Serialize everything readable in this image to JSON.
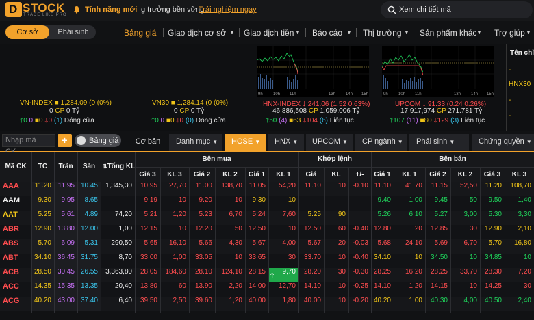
{
  "header": {
    "logo": "STOCK",
    "logo_sub": "TRADE LIKE PRO",
    "feature_label": "Tính năng mới",
    "marquee_text": "g trưởng bền vững.",
    "marquee_link": "Trải nghiệm ngay",
    "search_placeholder": "Xem chi tiết mã"
  },
  "nav": {
    "seg_on": "Cơ sở",
    "seg_off": "Phái sinh",
    "menu": [
      "Bảng giá",
      "Giao dịch cơ sở",
      "Giao dịch tiền",
      "Báo cáo",
      "Thị trường",
      "Sản phẩm khác",
      "Trợ giúp"
    ]
  },
  "indices": {
    "vnindex": {
      "name": "VN-INDEX",
      "value": "1,284.09 (0 (0%)",
      "vol": "0",
      "cp": "CP",
      "val": "0 Tỷ",
      "up": "0",
      "ceil": "0",
      "ref": "0",
      "down": "0",
      "floor": "(1)",
      "status": "Đóng cửa"
    },
    "vn30": {
      "name": "VN30",
      "value": "1,284.14 (0 (0%)",
      "vol": "0",
      "cp": "CP",
      "val": "0 Tỷ",
      "up": "0",
      "ceil": "0",
      "ref": "0",
      "down": "0",
      "floor": "(0)",
      "status": "Đóng cửa"
    },
    "hnx": {
      "name": "HNX-INDEX",
      "value": "241.06 (1.52 0.63%)",
      "vol": "46,886,508",
      "cp": "CP",
      "val": "1,059.006 Tỷ",
      "up": "50",
      "ceil": "(4)",
      "ref": "63",
      "down": "104",
      "floor": "(6)",
      "status": "Liên tục"
    },
    "upcom": {
      "name": "UPCOM",
      "value": "91.33 (0.24 0.26%)",
      "vol": "17,917,974",
      "cp": "CP",
      "val": "271.781 Tỷ",
      "up": "107",
      "ceil": "(11)",
      "ref": "80",
      "down": "129",
      "floor": "(3)",
      "status": "Liên tục"
    }
  },
  "chart_ticks": [
    "9h",
    "10h",
    "11h",
    "13h",
    "14h",
    "15h"
  ],
  "side": {
    "title": "Tên chỉ",
    "item": "HNX30",
    "dash": "-"
  },
  "toolbar": {
    "code_placeholder": "Nhập mã CK...",
    "plus": "+",
    "toggle": "Bảng giá",
    "coban": "Cơ bản",
    "danhmuc": "Danh mục",
    "hose": "HOSE",
    "hnx": "HNX",
    "upcom": "UPCOM",
    "cpnganh": "CP ngành",
    "phaisinh": "Phái sinh",
    "chungquyen": "Chứng quyền"
  },
  "table": {
    "headers": {
      "code": "Mã CK",
      "tc": "TC",
      "tran": "Trần",
      "san": "Sàn",
      "tongkl": "Tổng KL",
      "benmua": "Bên mua",
      "khoplenh": "Khớp lệnh",
      "benban": "Bên bán",
      "buy": [
        "Giá 3",
        "KL 3",
        "Giá 2",
        "KL 2",
        "Giá 1",
        "KL 1"
      ],
      "match": [
        "Giá",
        "KL",
        "+/-"
      ],
      "sell": [
        "Giá 1",
        "KL 1",
        "Giá 2",
        "KL 2",
        "Giá 3",
        "KL 3"
      ]
    },
    "rows": [
      {
        "code": "AAA",
        "c": "r",
        "tc": "11.20",
        "tran": "11.95",
        "san": "10.45",
        "tong": "1,345,30",
        "b3": "10.95",
        "k3": "27,70",
        "b2": "11.00",
        "k2": "138,70",
        "b1": "11.05",
        "k1": "54,20",
        "mp": "11.10",
        "mk": "10",
        "md": "-0.10",
        "s1": "11.10",
        "sk1": "41,70",
        "s2": "11.15",
        "sk2": "52,50",
        "s3": "11.20",
        "sk3": "108,70"
      },
      {
        "code": "AAM",
        "c": "w",
        "tc": "9.30",
        "tran": "9.95",
        "san": "8.65",
        "tong": "",
        "b3": "9.19",
        "k3": "10",
        "b2": "9.20",
        "k2": "10",
        "b1": "9.30",
        "k1": "10",
        "mp": "",
        "mk": "",
        "md": "",
        "s1": "9.40",
        "sk1": "1,00",
        "s2": "9.45",
        "sk2": "50",
        "s3": "9.50",
        "sk3": "1,40"
      },
      {
        "code": "AAT",
        "c": "y",
        "tc": "5.25",
        "tran": "5.61",
        "san": "4.89",
        "tong": "74,20",
        "b3": "5.21",
        "k3": "1,20",
        "b2": "5.23",
        "k2": "6,70",
        "b1": "5.24",
        "k1": "7,60",
        "mp": "5.25",
        "mk": "90",
        "md": "",
        "s1": "5.26",
        "sk1": "6,10",
        "s2": "5.27",
        "sk2": "3,00",
        "s3": "5.30",
        "sk3": "3,30"
      },
      {
        "code": "ABR",
        "c": "r",
        "tc": "12.90",
        "tran": "13.80",
        "san": "12.00",
        "tong": "1,00",
        "b3": "12.15",
        "k3": "10",
        "b2": "12.20",
        "k2": "50",
        "b1": "12.50",
        "k1": "10",
        "mp": "12.50",
        "mk": "60",
        "md": "-0.40",
        "s1": "12.80",
        "sk1": "20",
        "s2": "12.85",
        "sk2": "30",
        "s3": "12.90",
        "sk3": "2,10"
      },
      {
        "code": "ABS",
        "c": "r",
        "tc": "5.70",
        "tan": "",
        "tran": "6.09",
        "san": "5.31",
        "tong": "290,50",
        "b3": "5.65",
        "k3": "16,10",
        "b2": "5.66",
        "k2": "4,30",
        "b1": "5.67",
        "k1": "4,00",
        "mp": "5.67",
        "mk": "20",
        "md": "-0.03",
        "s1": "5.68",
        "sk1": "24,10",
        "s2": "5.69",
        "sk2": "6,70",
        "s3": "5.70",
        "sk3": "16,80"
      },
      {
        "code": "ABT",
        "c": "r",
        "tc": "34.10",
        "tran": "36.45",
        "san": "31.75",
        "tong": "8,70",
        "b3": "33.00",
        "k3": "1,00",
        "b2": "33.05",
        "k2": "10",
        "b1": "33.65",
        "k1": "30",
        "mp": "33.70",
        "mk": "10",
        "md": "-0.40",
        "s1": "34.10",
        "sk1": "10",
        "s2": "34.50",
        "sk2": "10",
        "s3": "34.85",
        "sk3": "10"
      },
      {
        "code": "ACB",
        "c": "r",
        "tc": "28.50",
        "tran": "30.45",
        "san": "26.55",
        "tong": "3,363,80",
        "b3": "28.05",
        "k3": "184,60",
        "b2": "28.10",
        "k2": "124,10",
        "b1": "28.15",
        "k1": "9,70",
        "mp": "28.20",
        "mk": "30",
        "md": "-0.30",
        "s1": "28.25",
        "sk1": "16,20",
        "s2": "28.25",
        "sk2": "33,70",
        "s3": "28.30",
        "sk3": "7,20"
      },
      {
        "code": "ACC",
        "c": "r",
        "tc": "14.35",
        "tran": "15.35",
        "san": "13.35",
        "tong": "20,40",
        "b3": "13.80",
        "k3": "60",
        "b2": "13.90",
        "k2": "2,20",
        "b1": "14.00",
        "k1": "12,70",
        "mp": "14.10",
        "mk": "10",
        "md": "-0.25",
        "s1": "14.10",
        "sk1": "1,20",
        "s2": "14.15",
        "sk2": "10",
        "s3": "14.25",
        "sk3": "30"
      },
      {
        "code": "ACG",
        "c": "r",
        "tc": "40.20",
        "tran": "43.00",
        "san": "37.40",
        "tong": "6,40",
        "b3": "39.50",
        "k3": "2,50",
        "b2": "39.60",
        "k2": "1,20",
        "b1": "40.00",
        "k1": "1,80",
        "mp": "40.00",
        "mk": "10",
        "md": "-0.20",
        "s1": "40.20",
        "sk1": "1,00",
        "s2": "40.30",
        "sk2": "4,00",
        "s3": "40.50",
        "sk3": "2,40"
      }
    ]
  },
  "colors": {
    "accent": "#f2a22b",
    "up": "#1fd35b",
    "down": "#ff4d4f",
    "ref": "#f0c419",
    "ceil": "#c46ff2",
    "floor": "#39c2e8"
  }
}
